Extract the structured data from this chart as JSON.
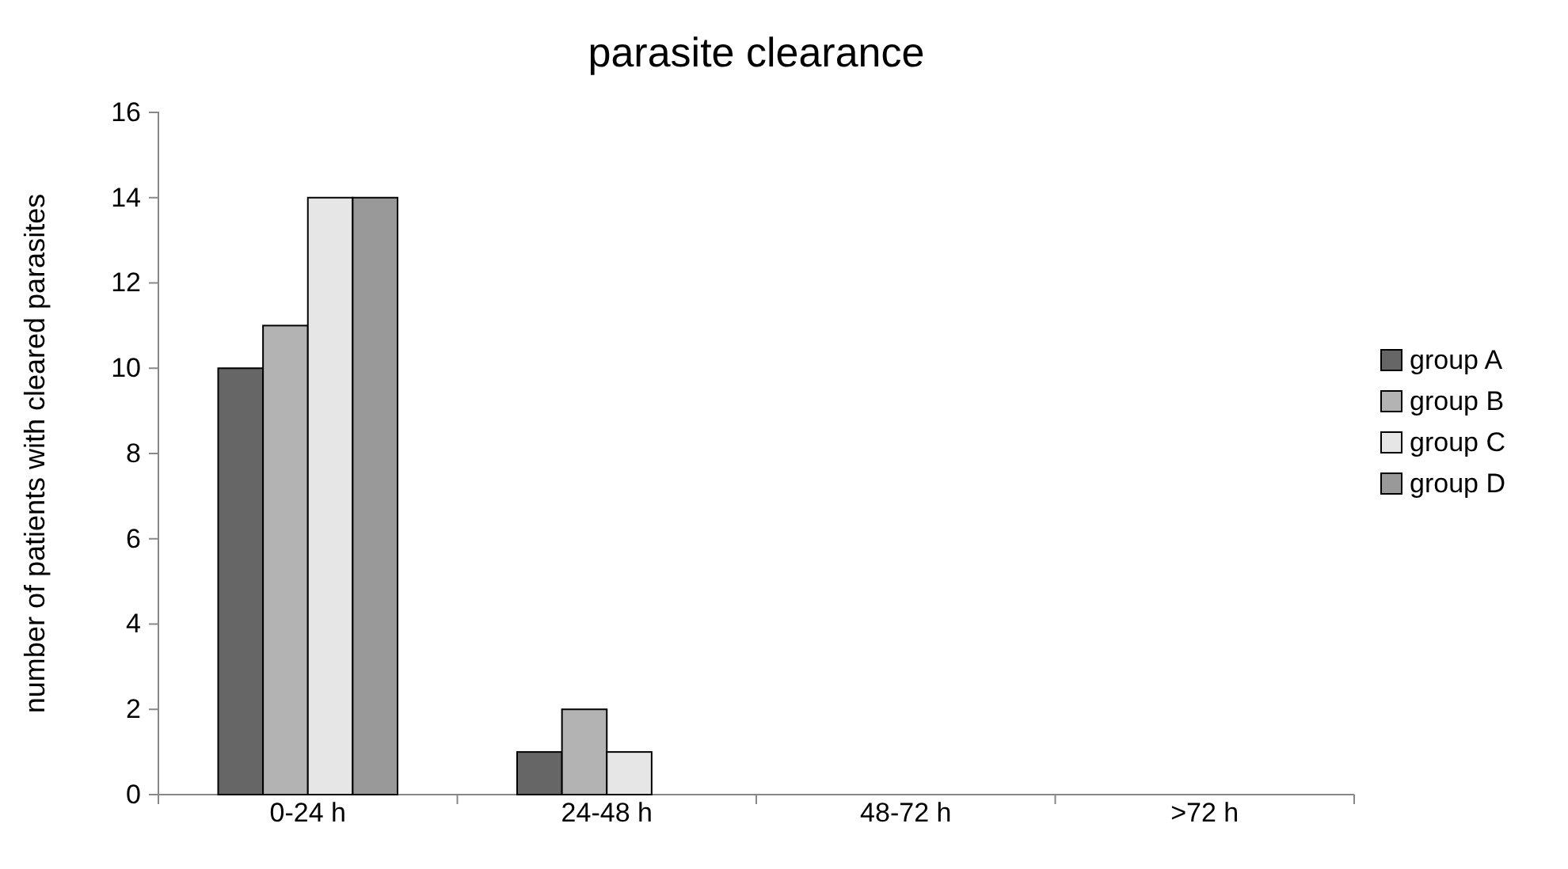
{
  "chart_data": {
    "type": "bar",
    "title": "parasite clearance",
    "ylabel": "number of patients with cleared parasites",
    "categories": [
      "0-24 h",
      "24-48 h",
      "48-72 h",
      ">72 h"
    ],
    "series": [
      {
        "name": "group A",
        "color": "#666666",
        "values": [
          10,
          1,
          0,
          0
        ]
      },
      {
        "name": "group B",
        "color": "#b3b3b3",
        "values": [
          11,
          2,
          0,
          0
        ]
      },
      {
        "name": "group C",
        "color": "#e6e6e6",
        "values": [
          14,
          1,
          0,
          0
        ]
      },
      {
        "name": "group D",
        "color": "#999999",
        "values": [
          14,
          0,
          0,
          0
        ]
      }
    ],
    "ylim": [
      0,
      16
    ],
    "yticks": [
      0,
      2,
      4,
      6,
      8,
      10,
      12,
      14,
      16
    ],
    "grid": false,
    "legend": "right"
  }
}
